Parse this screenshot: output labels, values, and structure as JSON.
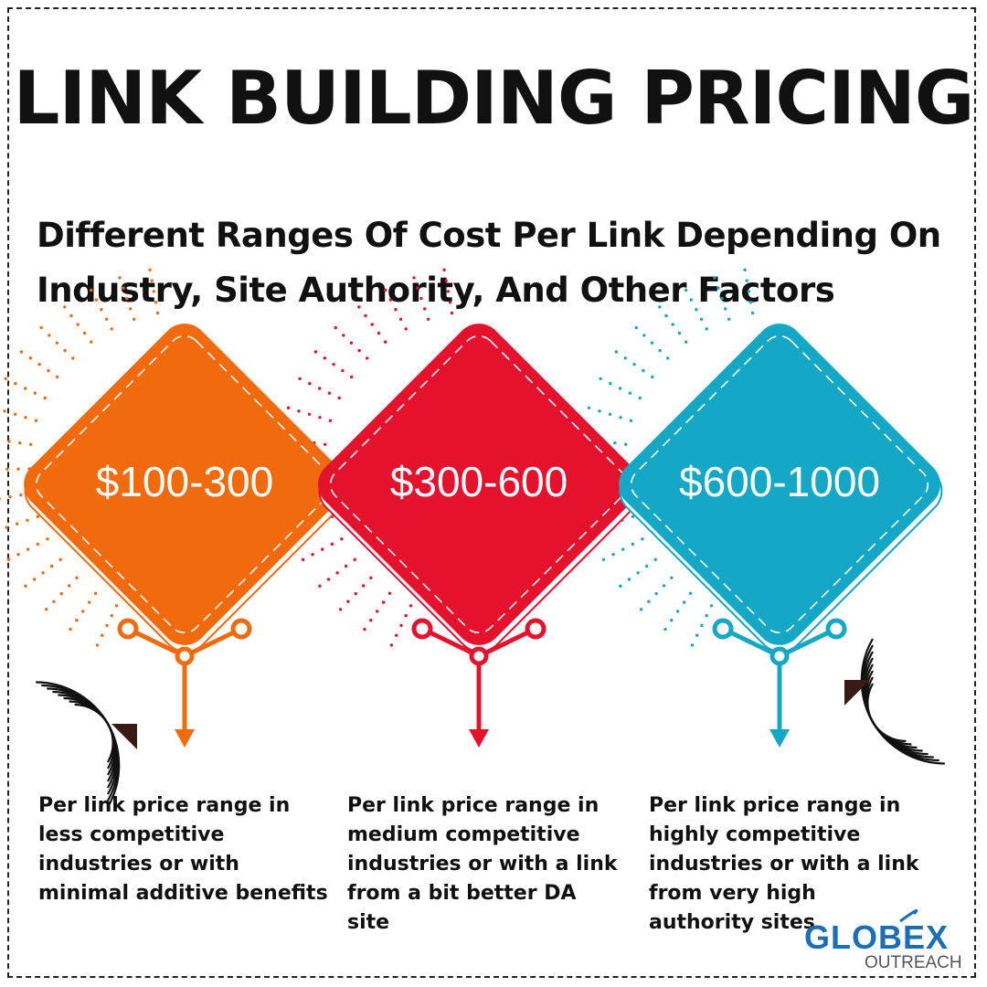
{
  "title": "LINK BUILDING PRICING",
  "subtitle": "Different Ranges Of Cost Per Link Depending On Industry, Site Authority, And Other Factors",
  "tiers": [
    {
      "price": "$100-300",
      "color": "#f26a0e",
      "description": "Per link price range in less competitive industries or with minimal additive benefits"
    },
    {
      "price": "$300-600",
      "color": "#e5122e",
      "description": "Per link price range in medium competitive industries or with a link from a bit better DA site"
    },
    {
      "price": "$600-1000",
      "color": "#14a7c6",
      "description": "Per link price range in highly competitive industries or with a link from very high authority sites"
    }
  ],
  "logo": {
    "name": "GLOBEX",
    "tagline": "OUTREACH",
    "color": "#1b6fb8"
  }
}
